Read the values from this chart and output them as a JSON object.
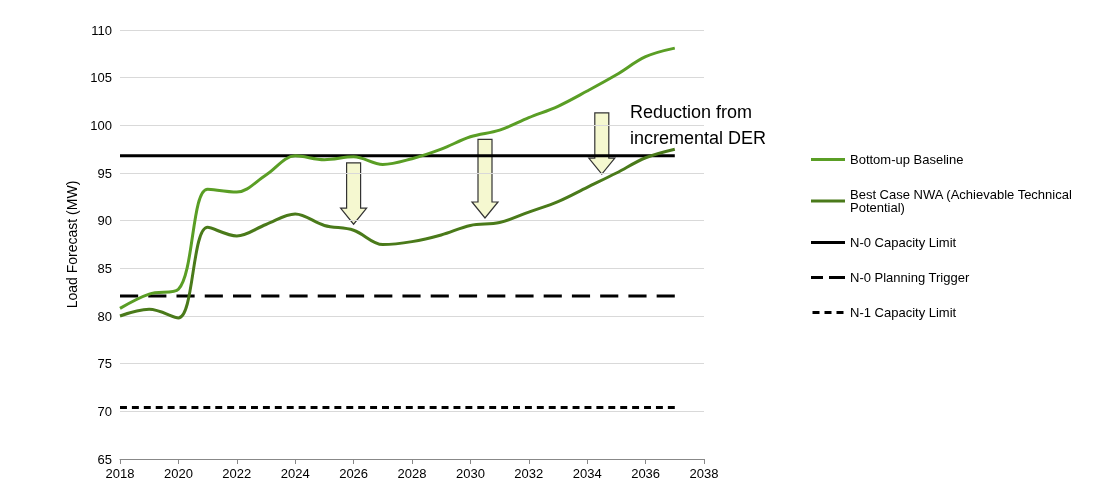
{
  "chart_data": {
    "type": "line",
    "ylabel": "Load Forecast (MW)",
    "x": [
      2018,
      2019,
      2020,
      2021,
      2022,
      2023,
      2024,
      2025,
      2026,
      2027,
      2028,
      2029,
      2030,
      2031,
      2032,
      2033,
      2034,
      2035,
      2036,
      2037
    ],
    "series": [
      {
        "name": "Bottom-up Baseline",
        "color": "#5a9e25",
        "values": [
          80.8,
          82.3,
          82.8,
          93.3,
          93.0,
          94.8,
          96.8,
          96.4,
          96.7,
          95.9,
          96.5,
          97.5,
          98.8,
          99.5,
          100.8,
          102.0,
          103.6,
          105.3,
          107.2,
          108.1
        ]
      },
      {
        "name": "Best Case NWA (Achievable Technical Potential)",
        "color": "#4a7a1a",
        "values": [
          80.0,
          80.7,
          79.8,
          89.3,
          88.4,
          89.6,
          90.7,
          89.5,
          89.0,
          87.5,
          87.8,
          88.5,
          89.5,
          89.8,
          90.9,
          92.0,
          93.5,
          95.0,
          96.6,
          97.5
        ]
      },
      {
        "name": "N-0 Capacity Limit",
        "color": "#000000",
        "values": [
          96.8,
          96.8,
          96.8,
          96.8,
          96.8,
          96.8,
          96.8,
          96.8,
          96.8,
          96.8,
          96.8,
          96.8,
          96.8,
          96.8,
          96.8,
          96.8,
          96.8,
          96.8,
          96.8,
          96.8
        ],
        "line_style": "solid"
      },
      {
        "name": "N-0 Planning Trigger",
        "color": "#000000",
        "values": [
          82.1,
          82.1,
          82.1,
          82.1,
          82.1,
          82.1,
          82.1,
          82.1,
          82.1,
          82.1,
          82.1,
          82.1,
          82.1,
          82.1,
          82.1,
          82.1,
          82.1,
          82.1,
          82.1,
          82.1
        ],
        "line_style": "dashed"
      },
      {
        "name": "N-1 Capacity Limit",
        "color": "#000000",
        "values": [
          70.4,
          70.4,
          70.4,
          70.4,
          70.4,
          70.4,
          70.4,
          70.4,
          70.4,
          70.4,
          70.4,
          70.4,
          70.4,
          70.4,
          70.4,
          70.4,
          70.4,
          70.4,
          70.4,
          70.4
        ],
        "line_style": "dotted"
      }
    ],
    "annotations": [
      "Reduction from incremental DER"
    ],
    "xlim": [
      2018,
      2038
    ],
    "xticks": [
      2018,
      2020,
      2022,
      2024,
      2026,
      2028,
      2030,
      2032,
      2034,
      2036,
      2038
    ],
    "ylim": [
      65,
      110
    ],
    "yticks": [
      65,
      70,
      75,
      80,
      85,
      90,
      95,
      100,
      105,
      110
    ],
    "grid": "y",
    "legend": "right",
    "marker": "none",
    "line_style": "solid"
  }
}
